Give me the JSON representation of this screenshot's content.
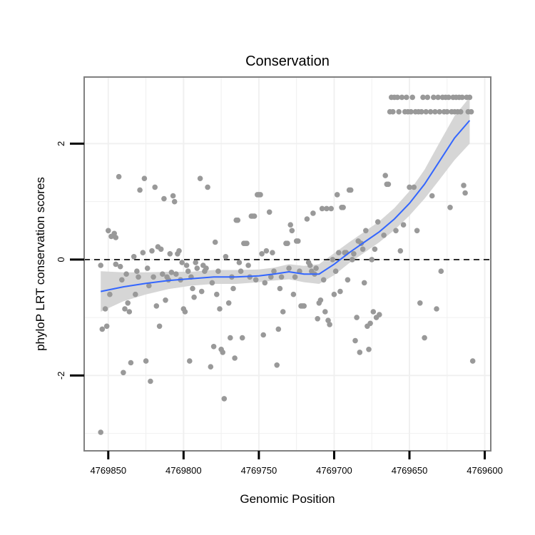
{
  "chart_data": {
    "type": "scatter",
    "title": "Conservation",
    "xlabel": "Genomic Position",
    "ylabel": "phyloP LRT conservation scores",
    "x_reversed": true,
    "xlim": [
      4769866,
      4769596
    ],
    "ylim": [
      -3.3,
      3.15
    ],
    "xticks": [
      {
        "value": 4769850,
        "label": "4769850"
      },
      {
        "value": 4769800,
        "label": "4769800"
      },
      {
        "value": 4769750,
        "label": "4769750"
      },
      {
        "value": 4769700,
        "label": "4769700"
      },
      {
        "value": 4769650,
        "label": "4769650"
      },
      {
        "value": 4769600,
        "label": "4769600"
      }
    ],
    "yticks": [
      {
        "value": -2,
        "label": "-2"
      },
      {
        "value": 0,
        "label": "0"
      },
      {
        "value": 2,
        "label": "2"
      }
    ],
    "reference_line": {
      "y": 0,
      "style": "dashed"
    },
    "colors": {
      "points": "#999999",
      "smooth": "#3366ff",
      "ribbon": "#d6d6d6",
      "grid": "#f0f0f0",
      "border": "#808080",
      "refline": "#000000"
    },
    "series": [
      {
        "name": "points",
        "points": [
          [
            4769855,
            -2.98
          ],
          [
            4769855,
            -0.1
          ],
          [
            4769854,
            -1.2
          ],
          [
            4769852,
            -0.85
          ],
          [
            4769851,
            -1.15
          ],
          [
            4769850,
            0.5
          ],
          [
            4769849,
            -0.6
          ],
          [
            4769848,
            0.4
          ],
          [
            4769846,
            0.45
          ],
          [
            4769845,
            0.38
          ],
          [
            4769845,
            -0.08
          ],
          [
            4769843,
            1.43
          ],
          [
            4769842,
            -0.12
          ],
          [
            4769841,
            -0.35
          ],
          [
            4769840,
            -1.95
          ],
          [
            4769839,
            -0.85
          ],
          [
            4769838,
            -0.25
          ],
          [
            4769837,
            -0.75
          ],
          [
            4769836,
            -0.9
          ],
          [
            4769835,
            -1.78
          ],
          [
            4769833,
            0.05
          ],
          [
            4769832,
            -0.6
          ],
          [
            4769831,
            -0.2
          ],
          [
            4769830,
            -0.3
          ],
          [
            4769829,
            1.2
          ],
          [
            4769827,
            0.12
          ],
          [
            4769826,
            1.4
          ],
          [
            4769825,
            -1.75
          ],
          [
            4769824,
            -0.15
          ],
          [
            4769823,
            -0.45
          ],
          [
            4769822,
            -2.1
          ],
          [
            4769821,
            0.15
          ],
          [
            4769820,
            -0.3
          ],
          [
            4769819,
            1.25
          ],
          [
            4769818,
            -0.8
          ],
          [
            4769817,
            0.22
          ],
          [
            4769816,
            -1.15
          ],
          [
            4769815,
            0.18
          ],
          [
            4769814,
            -0.25
          ],
          [
            4769813,
            1.05
          ],
          [
            4769812,
            -0.7
          ],
          [
            4769811,
            -0.3
          ],
          [
            4769810,
            -0.35
          ],
          [
            4769809,
            0.1
          ],
          [
            4769808,
            -0.22
          ],
          [
            4769807,
            1.1
          ],
          [
            4769806,
            1.0
          ],
          [
            4769805,
            -0.25
          ],
          [
            4769804,
            0.1
          ],
          [
            4769803,
            0.15
          ],
          [
            4769802,
            -0.35
          ],
          [
            4769801,
            -0.05
          ],
          [
            4769800,
            -0.85
          ],
          [
            4769799,
            -0.9
          ],
          [
            4769798,
            -0.1
          ],
          [
            4769797,
            -0.2
          ],
          [
            4769796,
            -1.75
          ],
          [
            4769795,
            -0.3
          ],
          [
            4769794,
            -0.5
          ],
          [
            4769793,
            -0.65
          ],
          [
            4769792,
            -0.05
          ],
          [
            4769791,
            -0.15
          ],
          [
            4769789,
            1.4
          ],
          [
            4769788,
            -0.55
          ],
          [
            4769787,
            -0.1
          ],
          [
            4769786,
            -0.2
          ],
          [
            4769785,
            -0.15
          ],
          [
            4769784,
            1.25
          ],
          [
            4769782,
            -1.85
          ],
          [
            4769781,
            -0.4
          ],
          [
            4769780,
            -1.5
          ],
          [
            4769779,
            0.3
          ],
          [
            4769778,
            -0.6
          ],
          [
            4769777,
            -0.2
          ],
          [
            4769776,
            -0.85
          ],
          [
            4769775,
            -1.55
          ],
          [
            4769774,
            -1.6
          ],
          [
            4769773,
            -2.4
          ],
          [
            4769772,
            0.05
          ],
          [
            4769770,
            -0.75
          ],
          [
            4769769,
            -1.35
          ],
          [
            4769768,
            -0.3
          ],
          [
            4769767,
            -0.5
          ],
          [
            4769766,
            -1.7
          ],
          [
            4769765,
            0.68
          ],
          [
            4769764,
            0.68
          ],
          [
            4769763,
            -0.05
          ],
          [
            4769762,
            -0.2
          ],
          [
            4769761,
            -1.35
          ],
          [
            4769760,
            0.28
          ],
          [
            4769759,
            0.28
          ],
          [
            4769758,
            0.28
          ],
          [
            4769757,
            -0.1
          ],
          [
            4769756,
            -0.3
          ],
          [
            4769755,
            0.75
          ],
          [
            4769754,
            0.75
          ],
          [
            4769753,
            0.75
          ],
          [
            4769752,
            -0.35
          ],
          [
            4769751,
            1.12
          ],
          [
            4769750,
            1.12
          ],
          [
            4769749,
            1.12
          ],
          [
            4769748,
            0.1
          ],
          [
            4769747,
            -1.3
          ],
          [
            4769746,
            -0.4
          ],
          [
            4769745,
            0.15
          ],
          [
            4769743,
            0.82
          ],
          [
            4769742,
            -0.3
          ],
          [
            4769741,
            0.12
          ],
          [
            4769740,
            -0.2
          ],
          [
            4769738,
            -1.82
          ],
          [
            4769737,
            -1.2
          ],
          [
            4769736,
            -0.5
          ],
          [
            4769735,
            -0.3
          ],
          [
            4769734,
            -0.9
          ],
          [
            4769732,
            0.28
          ],
          [
            4769731,
            0.28
          ],
          [
            4769730,
            -0.15
          ],
          [
            4769729,
            0.6
          ],
          [
            4769728,
            0.5
          ],
          [
            4769727,
            -0.6
          ],
          [
            4769726,
            -0.3
          ],
          [
            4769725,
            0.32
          ],
          [
            4769724,
            0.32
          ],
          [
            4769723,
            -0.2
          ],
          [
            4769722,
            -0.8
          ],
          [
            4769721,
            -0.8
          ],
          [
            4769720,
            -0.8
          ],
          [
            4769718,
            0.7
          ],
          [
            4769717,
            -0.05
          ],
          [
            4769716,
            -0.1
          ],
          [
            4769715,
            -0.2
          ],
          [
            4769714,
            0.8
          ],
          [
            4769713,
            -0.25
          ],
          [
            4769712,
            -0.15
          ],
          [
            4769711,
            -1.02
          ],
          [
            4769710,
            -0.75
          ],
          [
            4769709,
            -0.7
          ],
          [
            4769708,
            0.88
          ],
          [
            4769707,
            -0.35
          ],
          [
            4769706,
            -0.9
          ],
          [
            4769705,
            0.88
          ],
          [
            4769704,
            -1.05
          ],
          [
            4769703,
            -1.12
          ],
          [
            4769702,
            0.88
          ],
          [
            4769701,
            0.0
          ],
          [
            4769700,
            -0.6
          ],
          [
            4769699,
            -0.2
          ],
          [
            4769698,
            1.12
          ],
          [
            4769697,
            0.12
          ],
          [
            4769696,
            -0.55
          ],
          [
            4769695,
            0.9
          ],
          [
            4769694,
            0.9
          ],
          [
            4769693,
            0.12
          ],
          [
            4769692,
            0.12
          ],
          [
            4769691,
            -0.35
          ],
          [
            4769690,
            1.2
          ],
          [
            4769689,
            1.2
          ],
          [
            4769688,
            0.0
          ],
          [
            4769687,
            0.1
          ],
          [
            4769686,
            -1.4
          ],
          [
            4769685,
            -1.0
          ],
          [
            4769684,
            0.32
          ],
          [
            4769683,
            -1.6
          ],
          [
            4769682,
            0.28
          ],
          [
            4769681,
            0.18
          ],
          [
            4769680,
            -0.4
          ],
          [
            4769679,
            0.5
          ],
          [
            4769678,
            -1.15
          ],
          [
            4769677,
            -1.55
          ],
          [
            4769676,
            -1.1
          ],
          [
            4769675,
            0.0
          ],
          [
            4769674,
            -0.9
          ],
          [
            4769673,
            0.18
          ],
          [
            4769672,
            -1.0
          ],
          [
            4769671,
            0.65
          ],
          [
            4769670,
            -0.95
          ],
          [
            4769667,
            0.42
          ],
          [
            4769666,
            1.45
          ],
          [
            4769665,
            1.3
          ],
          [
            4769664,
            1.3
          ],
          [
            4769663,
            2.55
          ],
          [
            4769662,
            2.8
          ],
          [
            4769661,
            2.55
          ],
          [
            4769660,
            2.8
          ],
          [
            4769659,
            0.5
          ],
          [
            4769658,
            2.8
          ],
          [
            4769657,
            2.55
          ],
          [
            4769656,
            0.15
          ],
          [
            4769655,
            2.8
          ],
          [
            4769654,
            0.6
          ],
          [
            4769653,
            2.55
          ],
          [
            4769652,
            2.8
          ],
          [
            4769651,
            2.55
          ],
          [
            4769650,
            1.25
          ],
          [
            4769649,
            2.55
          ],
          [
            4769648,
            2.8
          ],
          [
            4769647,
            1.25
          ],
          [
            4769646,
            2.55
          ],
          [
            4769645,
            0.5
          ],
          [
            4769644,
            2.55
          ],
          [
            4769643,
            -0.75
          ],
          [
            4769642,
            2.55
          ],
          [
            4769641,
            2.8
          ],
          [
            4769640,
            -1.35
          ],
          [
            4769639,
            2.55
          ],
          [
            4769638,
            2.8
          ],
          [
            4769636,
            2.55
          ],
          [
            4769635,
            1.1
          ],
          [
            4769634,
            2.8
          ],
          [
            4769633,
            2.55
          ],
          [
            4769632,
            -0.85
          ],
          [
            4769631,
            2.8
          ],
          [
            4769630,
            2.55
          ],
          [
            4769629,
            -0.2
          ],
          [
            4769628,
            2.8
          ],
          [
            4769627,
            2.55
          ],
          [
            4769626,
            2.8
          ],
          [
            4769625,
            2.55
          ],
          [
            4769624,
            2.8
          ],
          [
            4769623,
            0.9
          ],
          [
            4769622,
            2.55
          ],
          [
            4769621,
            2.8
          ],
          [
            4769620,
            2.55
          ],
          [
            4769619,
            2.8
          ],
          [
            4769618,
            2.55
          ],
          [
            4769617,
            2.8
          ],
          [
            4769616,
            2.55
          ],
          [
            4769615,
            2.8
          ],
          [
            4769614,
            1.28
          ],
          [
            4769613,
            1.15
          ],
          [
            4769612,
            2.8
          ],
          [
            4769611,
            2.55
          ],
          [
            4769610,
            2.8
          ],
          [
            4769609,
            2.55
          ],
          [
            4769608,
            -1.75
          ]
        ]
      },
      {
        "name": "smooth",
        "x": [
          4769855,
          4769840,
          4769825,
          4769810,
          4769795,
          4769780,
          4769765,
          4769750,
          4769740,
          4769730,
          4769720,
          4769710,
          4769700,
          4769690,
          4769680,
          4769670,
          4769660,
          4769650,
          4769640,
          4769630,
          4769620,
          4769610
        ],
        "y": [
          -0.55,
          -0.47,
          -0.41,
          -0.36,
          -0.33,
          -0.3,
          -0.3,
          -0.28,
          -0.25,
          -0.21,
          -0.25,
          -0.25,
          -0.08,
          0.12,
          0.3,
          0.48,
          0.7,
          0.97,
          1.3,
          1.7,
          2.1,
          2.4
        ],
        "lo": [
          -0.9,
          -0.72,
          -0.6,
          -0.51,
          -0.45,
          -0.42,
          -0.42,
          -0.39,
          -0.36,
          -0.34,
          -0.39,
          -0.42,
          -0.27,
          -0.06,
          0.12,
          0.3,
          0.51,
          0.76,
          1.05,
          1.38,
          1.72,
          2.0
        ],
        "hi": [
          -0.2,
          -0.22,
          -0.22,
          -0.21,
          -0.21,
          -0.18,
          -0.18,
          -0.17,
          -0.14,
          -0.08,
          -0.11,
          -0.08,
          0.11,
          0.3,
          0.48,
          0.66,
          0.89,
          1.18,
          1.55,
          2.02,
          2.48,
          2.8
        ]
      }
    ]
  }
}
